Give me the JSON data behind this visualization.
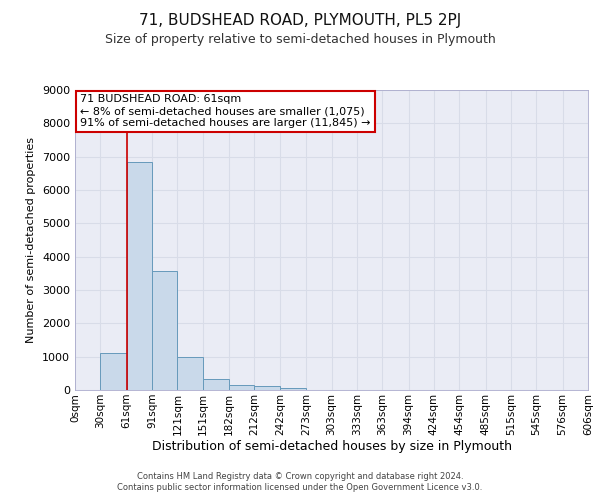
{
  "title_top": "71, BUDSHEAD ROAD, PLYMOUTH, PL5 2PJ",
  "title_sub": "Size of property relative to semi-detached houses in Plymouth",
  "xlabel": "Distribution of semi-detached houses by size in Plymouth",
  "ylabel": "Number of semi-detached properties",
  "bin_edges": [
    0,
    30,
    61,
    91,
    121,
    151,
    182,
    212,
    242,
    273,
    303,
    333,
    363,
    394,
    424,
    454,
    485,
    515,
    545,
    576,
    606
  ],
  "bin_labels": [
    "0sqm",
    "30sqm",
    "61sqm",
    "91sqm",
    "121sqm",
    "151sqm",
    "182sqm",
    "212sqm",
    "242sqm",
    "273sqm",
    "303sqm",
    "333sqm",
    "363sqm",
    "394sqm",
    "424sqm",
    "454sqm",
    "485sqm",
    "515sqm",
    "545sqm",
    "576sqm",
    "606sqm"
  ],
  "counts": [
    0,
    1100,
    6850,
    3580,
    980,
    330,
    150,
    110,
    60,
    0,
    0,
    0,
    0,
    0,
    0,
    0,
    0,
    0,
    0,
    0
  ],
  "bar_color": "#c9d9ea",
  "bar_edge_color": "#6699bb",
  "property_line_x": 61,
  "annotation_title": "71 BUDSHEAD ROAD: 61sqm",
  "annotation_line1": "← 8% of semi-detached houses are smaller (1,075)",
  "annotation_line2": "91% of semi-detached houses are larger (11,845) →",
  "annotation_box_color": "#ffffff",
  "annotation_box_edge": "#cc0000",
  "property_line_color": "#cc0000",
  "ylim": [
    0,
    9000
  ],
  "yticks": [
    0,
    1000,
    2000,
    3000,
    4000,
    5000,
    6000,
    7000,
    8000,
    9000
  ],
  "grid_color": "#d8dce8",
  "bg_color": "#eaecf5",
  "footer1": "Contains HM Land Registry data © Crown copyright and database right 2024.",
  "footer2": "Contains public sector information licensed under the Open Government Licence v3.0."
}
